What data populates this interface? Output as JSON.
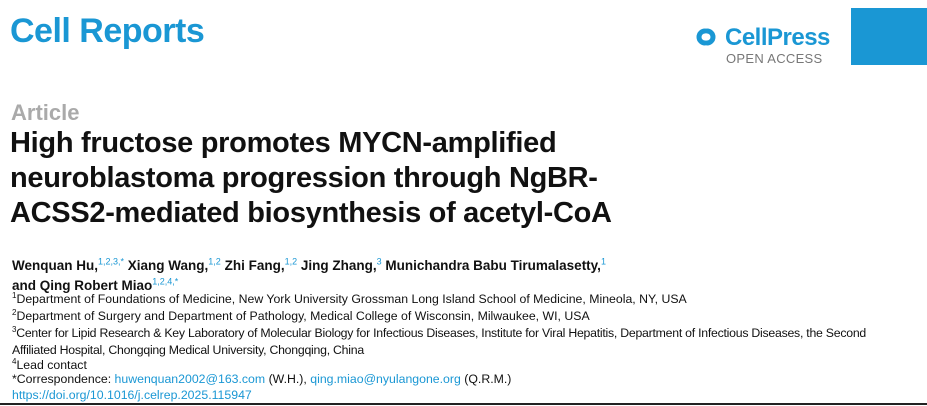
{
  "header": {
    "journal": "Cell Reports",
    "publisher": "CellPress",
    "access": "OPEN ACCESS",
    "brand_color": "#1a97d4"
  },
  "article": {
    "type": "Article",
    "title": "High fructose promotes MYCN-amplified neuroblastoma progression through NgBR-ACSS2-mediated biosynthesis of acetyl-CoA"
  },
  "authors": [
    {
      "name": "Wenquan Hu,",
      "sup": "1,2,3,*"
    },
    {
      "name": "Xiang Wang,",
      "sup": "1,2"
    },
    {
      "name": "Zhi Fang,",
      "sup": "1,2"
    },
    {
      "name": "Jing Zhang,",
      "sup": "3"
    },
    {
      "name": "Munichandra Babu Tirumalasetty,",
      "sup": "1"
    },
    {
      "name": "and Qing Robert Miao",
      "sup": "1,2,4,*"
    }
  ],
  "affiliations": [
    {
      "sup": "1",
      "text": "Department of Foundations of Medicine, New York University Grossman Long Island School of Medicine, Mineola, NY, USA"
    },
    {
      "sup": "2",
      "text": "Department of Surgery and Department of Pathology, Medical College of Wisconsin, Milwaukee, WI, USA"
    },
    {
      "sup": "3",
      "text": "Center for Lipid Research & Key Laboratory of Molecular Biology for Infectious Diseases, Institute for Viral Hepatitis, Department of Infectious Diseases, the Second Affiliated Hospital, Chongqing Medical University, Chongqing, China"
    },
    {
      "sup": "4",
      "text": "Lead contact"
    }
  ],
  "correspondence": {
    "label": "*Correspondence: ",
    "email1": "huwenquan2002@163.com",
    "who1": " (W.H.), ",
    "email2": "qing.miao@nyulangone.org",
    "who2": " (Q.R.M.)"
  },
  "doi": "https://doi.org/10.1016/j.celrep.2025.115947"
}
